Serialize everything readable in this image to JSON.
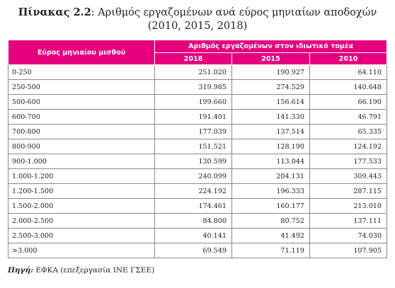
{
  "caption": {
    "label": "Πίνακας 2.2",
    "title_line1": ": Αριθμός εργαζομένων ανά εύρος μηνιαίων αποδοχών",
    "title_line2": "(2010, 2015, 2018)"
  },
  "table": {
    "row_header": "Εύρος μηνιαίου μισθού",
    "group_header": "Αριθμός εργαζομένων στον ιδιωτικό τομέα",
    "years": [
      "2018",
      "2015",
      "2010"
    ],
    "rows": [
      {
        "range": "0-250",
        "values": [
          "251.020",
          "190.927",
          "64.110"
        ]
      },
      {
        "range": "250-500",
        "values": [
          "319.985",
          "274.529",
          "140.648"
        ]
      },
      {
        "range": "500-600",
        "values": [
          "199.660",
          "156.614",
          "66.190"
        ]
      },
      {
        "range": "600-700",
        "values": [
          "191.401",
          "141.330",
          "46.791"
        ]
      },
      {
        "range": "700-800",
        "values": [
          "177.039",
          "137.514",
          "65.335"
        ]
      },
      {
        "range": "800-900",
        "values": [
          "151.521",
          "128.190",
          "124.192"
        ]
      },
      {
        "range": "900-1.000",
        "values": [
          "130.599",
          "113.044",
          "177.533"
        ]
      },
      {
        "range": "1.000-1.200",
        "values": [
          "240.099",
          "204.131",
          "309.443"
        ]
      },
      {
        "range": "1.200-1.500",
        "values": [
          "224.192",
          "196.333",
          "287.115"
        ]
      },
      {
        "range": "1.500-2.000",
        "values": [
          "174.461",
          "160.177",
          "213.010"
        ]
      },
      {
        "range": "2.000-2.500",
        "values": [
          "84.800",
          "80.752",
          "137.111"
        ]
      },
      {
        "range": "2.500-3.000",
        "values": [
          "40.141",
          "41.492",
          "74.030"
        ]
      },
      {
        "range": ">3.000",
        "values": [
          "69.549",
          "71.119",
          "107.905"
        ]
      }
    ]
  },
  "source": {
    "label": "Πηγή:",
    "text": " ΕΦΚΑ (επεξεργασία ΙΝΕ ΓΣΕΕ)"
  },
  "colors": {
    "header_bg": "#e6007e",
    "header_text": "#ffffff",
    "border": "#8a8a8a"
  }
}
